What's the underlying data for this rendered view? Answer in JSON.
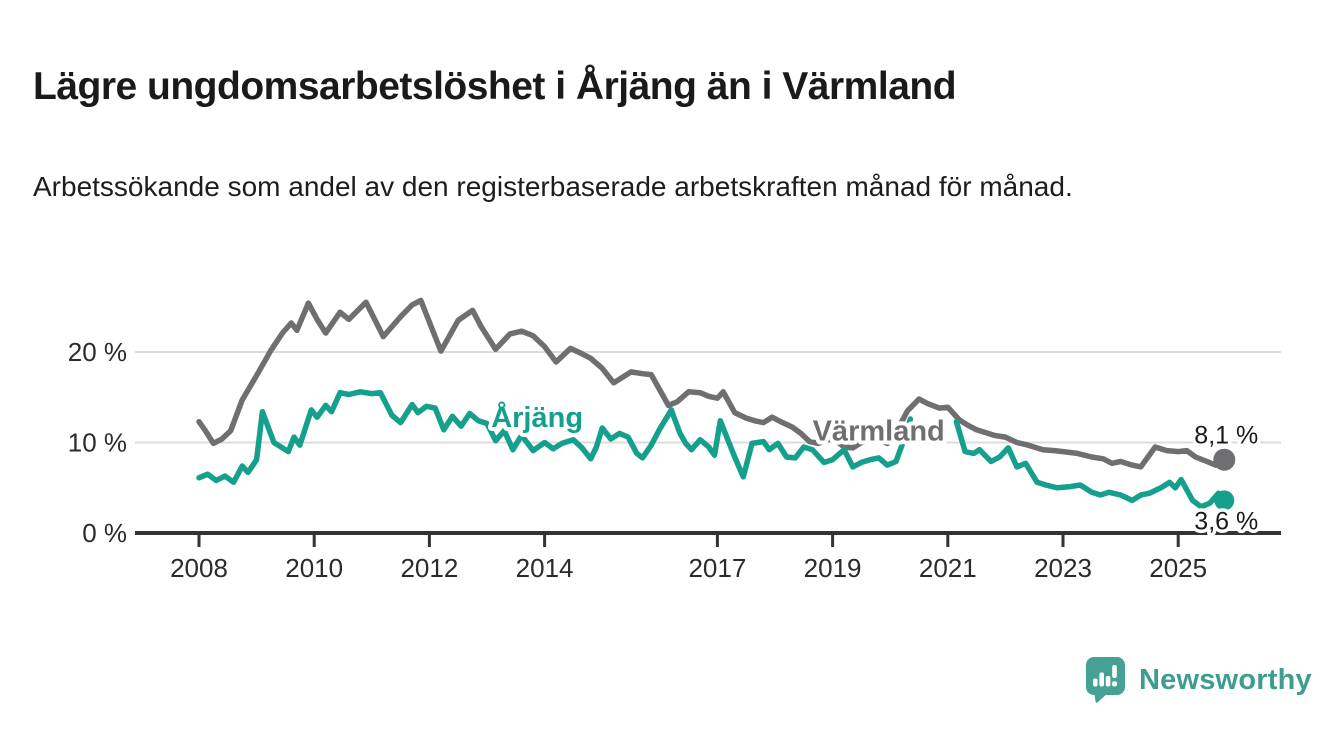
{
  "page": {
    "title": "Lägre ungdomsarbetslöshet i Årjäng än i Värmland",
    "subtitle": "Arbetssökande som andel av den registerbaserade arbetskraften månad för månad."
  },
  "footer": {
    "brand": "Newsworthy",
    "brand_color": "#3E9C91",
    "logo_icon": "newsworthy-speech-bubble-bar-chart-icon"
  },
  "chart_data": {
    "type": "line",
    "title": "Lägre ungdomsarbetslöshet i Årjäng än i Värmland",
    "subtitle": "Arbetssökande som andel av den registerbaserade arbetskraften månad för månad.",
    "unit": "%",
    "x_unit": "year (monthly observations, Jan 2008 – late 2025)",
    "note": "values estimated from pixels; Årjäng series has a visible data gap mid-2020 to early 2021",
    "grid": "horizontal",
    "ylim": [
      0,
      28
    ],
    "xlim": [
      2006.9,
      2026.8
    ],
    "yticks": [
      {
        "value": 0,
        "label": "0 %"
      },
      {
        "value": 10,
        "label": "10 %"
      },
      {
        "value": 20,
        "label": "20 %"
      }
    ],
    "xticks": [
      {
        "value": 2008,
        "label": "2008"
      },
      {
        "value": 2010,
        "label": "2010"
      },
      {
        "value": 2012,
        "label": "2012"
      },
      {
        "value": 2014,
        "label": "2014"
      },
      {
        "value": 2017,
        "label": "2017"
      },
      {
        "value": 2019,
        "label": "2019"
      },
      {
        "value": 2021,
        "label": "2021"
      },
      {
        "value": 2023,
        "label": "2023"
      },
      {
        "value": 2025,
        "label": "2025"
      }
    ],
    "series": [
      {
        "name": "Värmland",
        "color": "#6F6F72",
        "label_anchor": {
          "year": 2019.8,
          "pct": 11.3
        },
        "end_value": 8.1,
        "end_label": "8,1 %",
        "end_label_position": "above",
        "points": [
          [
            2008.0,
            12.3
          ],
          [
            2008.1,
            11.4
          ],
          [
            2008.25,
            9.9
          ],
          [
            2008.4,
            10.4
          ],
          [
            2008.55,
            11.3
          ],
          [
            2008.75,
            14.7
          ],
          [
            2009.0,
            17.4
          ],
          [
            2009.25,
            20.2
          ],
          [
            2009.45,
            22.1
          ],
          [
            2009.6,
            23.2
          ],
          [
            2009.7,
            22.4
          ],
          [
            2009.9,
            25.4
          ],
          [
            2010.05,
            23.6
          ],
          [
            2010.2,
            22.1
          ],
          [
            2010.45,
            24.4
          ],
          [
            2010.6,
            23.6
          ],
          [
            2010.9,
            25.5
          ],
          [
            2011.2,
            21.7
          ],
          [
            2011.5,
            23.9
          ],
          [
            2011.7,
            25.2
          ],
          [
            2011.85,
            25.7
          ],
          [
            2012.2,
            20.1
          ],
          [
            2012.5,
            23.5
          ],
          [
            2012.75,
            24.6
          ],
          [
            2012.9,
            22.8
          ],
          [
            2013.15,
            20.3
          ],
          [
            2013.4,
            22.0
          ],
          [
            2013.6,
            22.3
          ],
          [
            2013.8,
            21.8
          ],
          [
            2014.0,
            20.6
          ],
          [
            2014.2,
            18.9
          ],
          [
            2014.45,
            20.4
          ],
          [
            2014.65,
            19.8
          ],
          [
            2014.8,
            19.3
          ],
          [
            2015.0,
            18.2
          ],
          [
            2015.2,
            16.6
          ],
          [
            2015.5,
            17.8
          ],
          [
            2015.7,
            17.6
          ],
          [
            2015.85,
            17.5
          ],
          [
            2016.0,
            15.8
          ],
          [
            2016.15,
            14.1
          ],
          [
            2016.3,
            14.5
          ],
          [
            2016.5,
            15.6
          ],
          [
            2016.7,
            15.5
          ],
          [
            2016.85,
            15.1
          ],
          [
            2017.0,
            14.9
          ],
          [
            2017.1,
            15.6
          ],
          [
            2017.3,
            13.3
          ],
          [
            2017.5,
            12.7
          ],
          [
            2017.65,
            12.4
          ],
          [
            2017.8,
            12.2
          ],
          [
            2017.95,
            12.8
          ],
          [
            2018.1,
            12.3
          ],
          [
            2018.3,
            11.7
          ],
          [
            2018.45,
            11.0
          ],
          [
            2018.6,
            10.1
          ],
          [
            2018.75,
            9.9
          ],
          [
            2019.0,
            10.5
          ],
          [
            2019.2,
            9.5
          ],
          [
            2019.35,
            9.4
          ],
          [
            2019.5,
            10.0
          ],
          [
            2019.65,
            10.2
          ],
          [
            2019.8,
            10.3
          ],
          [
            2019.95,
            9.9
          ],
          [
            2020.1,
            11.1
          ],
          [
            2020.3,
            13.5
          ],
          [
            2020.5,
            14.8
          ],
          [
            2020.65,
            14.3
          ],
          [
            2020.85,
            13.8
          ],
          [
            2021.0,
            13.9
          ],
          [
            2021.2,
            12.5
          ],
          [
            2021.35,
            11.9
          ],
          [
            2021.5,
            11.4
          ],
          [
            2021.8,
            10.8
          ],
          [
            2022.0,
            10.6
          ],
          [
            2022.2,
            10.0
          ],
          [
            2022.4,
            9.7
          ],
          [
            2022.65,
            9.2
          ],
          [
            2022.85,
            9.1
          ],
          [
            2023.0,
            9.0
          ],
          [
            2023.25,
            8.8
          ],
          [
            2023.5,
            8.4
          ],
          [
            2023.7,
            8.2
          ],
          [
            2023.85,
            7.7
          ],
          [
            2024.0,
            7.9
          ],
          [
            2024.2,
            7.5
          ],
          [
            2024.35,
            7.3
          ],
          [
            2024.6,
            9.5
          ],
          [
            2024.8,
            9.1
          ],
          [
            2025.0,
            9.0
          ],
          [
            2025.15,
            9.1
          ],
          [
            2025.3,
            8.4
          ],
          [
            2025.5,
            7.9
          ],
          [
            2025.65,
            7.5
          ],
          [
            2025.8,
            8.1
          ]
        ]
      },
      {
        "name": "Årjäng",
        "color": "#15A08E",
        "label_anchor": {
          "year": 2013.87,
          "pct": 12.8
        },
        "end_value": 3.6,
        "end_label": "3,6 %",
        "end_label_position": "below",
        "points": [
          [
            2008.0,
            6.1
          ],
          [
            2008.15,
            6.5
          ],
          [
            2008.3,
            5.8
          ],
          [
            2008.45,
            6.3
          ],
          [
            2008.6,
            5.6
          ],
          [
            2008.75,
            7.4
          ],
          [
            2008.85,
            6.7
          ],
          [
            2009.0,
            8.1
          ],
          [
            2009.1,
            13.4
          ],
          [
            2009.3,
            10.0
          ],
          [
            2009.45,
            9.4
          ],
          [
            2009.55,
            9.0
          ],
          [
            2009.65,
            10.6
          ],
          [
            2009.75,
            9.7
          ],
          [
            2009.95,
            13.6
          ],
          [
            2010.05,
            12.8
          ],
          [
            2010.2,
            14.1
          ],
          [
            2010.3,
            13.4
          ],
          [
            2010.45,
            15.5
          ],
          [
            2010.6,
            15.3
          ],
          [
            2010.8,
            15.6
          ],
          [
            2011.0,
            15.4
          ],
          [
            2011.15,
            15.5
          ],
          [
            2011.35,
            13.0
          ],
          [
            2011.5,
            12.2
          ],
          [
            2011.7,
            14.2
          ],
          [
            2011.8,
            13.3
          ],
          [
            2011.95,
            14.0
          ],
          [
            2012.1,
            13.8
          ],
          [
            2012.25,
            11.4
          ],
          [
            2012.4,
            12.9
          ],
          [
            2012.55,
            11.8
          ],
          [
            2012.7,
            13.2
          ],
          [
            2012.85,
            12.4
          ],
          [
            2013.0,
            12.1
          ],
          [
            2013.15,
            10.2
          ],
          [
            2013.3,
            11.3
          ],
          [
            2013.45,
            9.2
          ],
          [
            2013.6,
            10.8
          ],
          [
            2013.8,
            9.1
          ],
          [
            2014.0,
            10.0
          ],
          [
            2014.15,
            9.3
          ],
          [
            2014.3,
            9.9
          ],
          [
            2014.5,
            10.3
          ],
          [
            2014.65,
            9.4
          ],
          [
            2014.8,
            8.2
          ],
          [
            2014.9,
            9.5
          ],
          [
            2015.0,
            11.6
          ],
          [
            2015.15,
            10.4
          ],
          [
            2015.3,
            11.0
          ],
          [
            2015.45,
            10.6
          ],
          [
            2015.6,
            8.8
          ],
          [
            2015.7,
            8.3
          ],
          [
            2015.85,
            9.7
          ],
          [
            2016.0,
            11.5
          ],
          [
            2016.2,
            13.6
          ],
          [
            2016.35,
            11.0
          ],
          [
            2016.45,
            9.9
          ],
          [
            2016.55,
            9.2
          ],
          [
            2016.7,
            10.3
          ],
          [
            2016.85,
            9.5
          ],
          [
            2016.95,
            8.6
          ],
          [
            2017.05,
            12.4
          ],
          [
            2017.2,
            10.0
          ],
          [
            2017.3,
            8.4
          ],
          [
            2017.45,
            6.2
          ],
          [
            2017.6,
            9.9
          ],
          [
            2017.8,
            10.1
          ],
          [
            2017.9,
            9.2
          ],
          [
            2018.05,
            9.9
          ],
          [
            2018.2,
            8.4
          ],
          [
            2018.35,
            8.3
          ],
          [
            2018.5,
            9.5
          ],
          [
            2018.65,
            9.2
          ],
          [
            2018.85,
            7.8
          ],
          [
            2019.0,
            8.1
          ],
          [
            2019.2,
            9.2
          ],
          [
            2019.35,
            7.3
          ],
          [
            2019.5,
            7.8
          ],
          [
            2019.65,
            8.1
          ],
          [
            2019.8,
            8.3
          ],
          [
            2019.95,
            7.5
          ],
          [
            2020.1,
            7.9
          ],
          [
            2020.25,
            10.5
          ],
          [
            2020.35,
            12.6
          ],
          [
            2020.6,
            null
          ],
          [
            2020.85,
            null
          ],
          [
            2021.15,
            12.3
          ],
          [
            2021.3,
            9.0
          ],
          [
            2021.45,
            8.8
          ],
          [
            2021.55,
            9.2
          ],
          [
            2021.75,
            7.9
          ],
          [
            2021.9,
            8.4
          ],
          [
            2022.05,
            9.4
          ],
          [
            2022.2,
            7.3
          ],
          [
            2022.35,
            7.7
          ],
          [
            2022.55,
            5.6
          ],
          [
            2022.7,
            5.3
          ],
          [
            2022.9,
            5.0
          ],
          [
            2023.1,
            5.1
          ],
          [
            2023.3,
            5.3
          ],
          [
            2023.5,
            4.5
          ],
          [
            2023.65,
            4.2
          ],
          [
            2023.8,
            4.5
          ],
          [
            2024.0,
            4.2
          ],
          [
            2024.2,
            3.6
          ],
          [
            2024.35,
            4.2
          ],
          [
            2024.5,
            4.4
          ],
          [
            2024.7,
            5.0
          ],
          [
            2024.85,
            5.6
          ],
          [
            2024.95,
            5.0
          ],
          [
            2025.05,
            5.9
          ],
          [
            2025.25,
            3.6
          ],
          [
            2025.4,
            2.9
          ],
          [
            2025.55,
            3.3
          ],
          [
            2025.7,
            4.4
          ],
          [
            2025.8,
            3.6
          ]
        ]
      }
    ]
  }
}
